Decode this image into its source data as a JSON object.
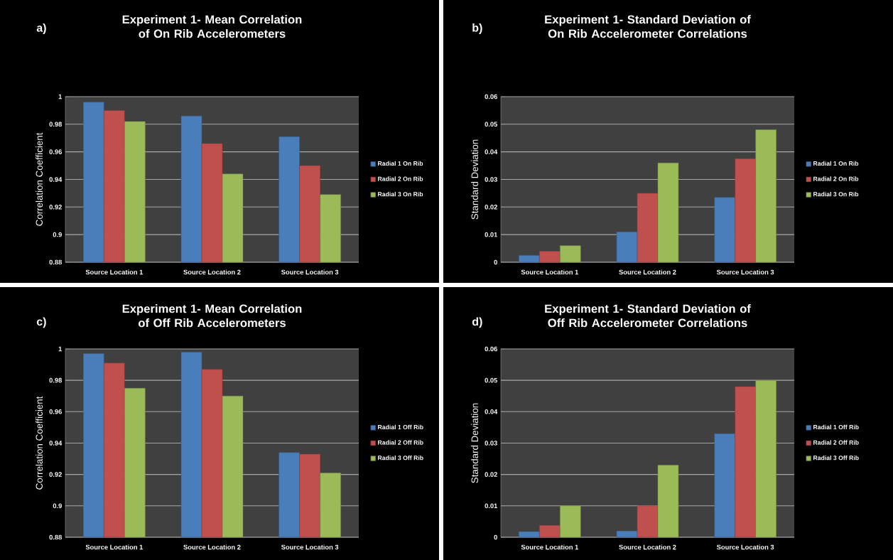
{
  "chart_data": [
    {
      "type": "bar",
      "title": "Experiment 1- Mean Correlation of On Rib Accelerometers",
      "annotations": [
        "a)"
      ],
      "ylabel": "Correlation Coefficient",
      "categories": [
        "Source Location 1",
        "Source Location 2",
        "Source Location 3"
      ],
      "series": [
        {
          "name": "Radial 1 On Rib",
          "color": "#4a7ebb",
          "values": [
            0.996,
            0.986,
            0.971
          ]
        },
        {
          "name": "Radial 2 On Rib",
          "color": "#c0504d",
          "values": [
            0.99,
            0.966,
            0.95
          ]
        },
        {
          "name": "Radial 3 On Rib",
          "color": "#9bbb59",
          "values": [
            0.982,
            0.944,
            0.929
          ]
        }
      ],
      "ylim": [
        0.88,
        1
      ],
      "yticks": [
        0.88,
        0.9,
        0.92,
        0.94,
        0.96,
        0.98,
        1
      ],
      "grid": "y",
      "legend": "right"
    },
    {
      "type": "bar",
      "title": "Experiment 1- Standard Deviation of On Rib Accelerometer Correlations",
      "annotations": [
        "b)"
      ],
      "ylabel": "Standard Deviation",
      "categories": [
        "Source Location 1",
        "Source Location 2",
        "Source Location 3"
      ],
      "series": [
        {
          "name": "Radial 1 On Rib",
          "color": "#4a7ebb",
          "values": [
            0.0025,
            0.011,
            0.0235
          ]
        },
        {
          "name": "Radial 2 On Rib",
          "color": "#c0504d",
          "values": [
            0.004,
            0.025,
            0.0375
          ]
        },
        {
          "name": "Radial 3 On Rib",
          "color": "#9bbb59",
          "values": [
            0.006,
            0.036,
            0.048
          ]
        }
      ],
      "ylim": [
        0,
        0.06
      ],
      "yticks": [
        0,
        0.01,
        0.02,
        0.03,
        0.04,
        0.05,
        0.06
      ],
      "grid": "y",
      "legend": "right"
    },
    {
      "type": "bar",
      "title": "Experiment 1- Mean Correlation of Off Rib Accelerometers",
      "annotations": [
        "c)"
      ],
      "ylabel": "Correlation Coefficient",
      "categories": [
        "Source Location 1",
        "Source Location 2",
        "Source Location 3"
      ],
      "series": [
        {
          "name": "Radial 1 Off Rib",
          "color": "#4a7ebb",
          "values": [
            0.997,
            0.998,
            0.934
          ]
        },
        {
          "name": "Radial 2 Off Rib",
          "color": "#c0504d",
          "values": [
            0.991,
            0.987,
            0.933
          ]
        },
        {
          "name": "Radial 3 Off Rib",
          "color": "#9bbb59",
          "values": [
            0.975,
            0.97,
            0.921
          ]
        }
      ],
      "ylim": [
        0.88,
        1
      ],
      "yticks": [
        0.88,
        0.9,
        0.92,
        0.94,
        0.96,
        0.98,
        1
      ],
      "grid": "y",
      "legend": "right"
    },
    {
      "type": "bar",
      "title": "Experiment 1- Standard Deviation of Off Rib Accelerometer Correlations",
      "annotations": [
        "d)"
      ],
      "ylabel": "Standard Deviation",
      "categories": [
        "Source Location 1",
        "Source Location 2",
        "Source Location 3"
      ],
      "series": [
        {
          "name": "Radial 1 Off Rib",
          "color": "#4a7ebb",
          "values": [
            0.0018,
            0.002,
            0.033
          ]
        },
        {
          "name": "Radial 2 Off Rib",
          "color": "#c0504d",
          "values": [
            0.0038,
            0.01,
            0.048
          ]
        },
        {
          "name": "Radial 3 Off Rib",
          "color": "#9bbb59",
          "values": [
            0.01,
            0.023,
            0.05
          ]
        }
      ],
      "ylim": [
        0,
        0.06
      ],
      "yticks": [
        0,
        0.01,
        0.02,
        0.03,
        0.04,
        0.05,
        0.06
      ],
      "grid": "y",
      "legend": "right"
    }
  ]
}
